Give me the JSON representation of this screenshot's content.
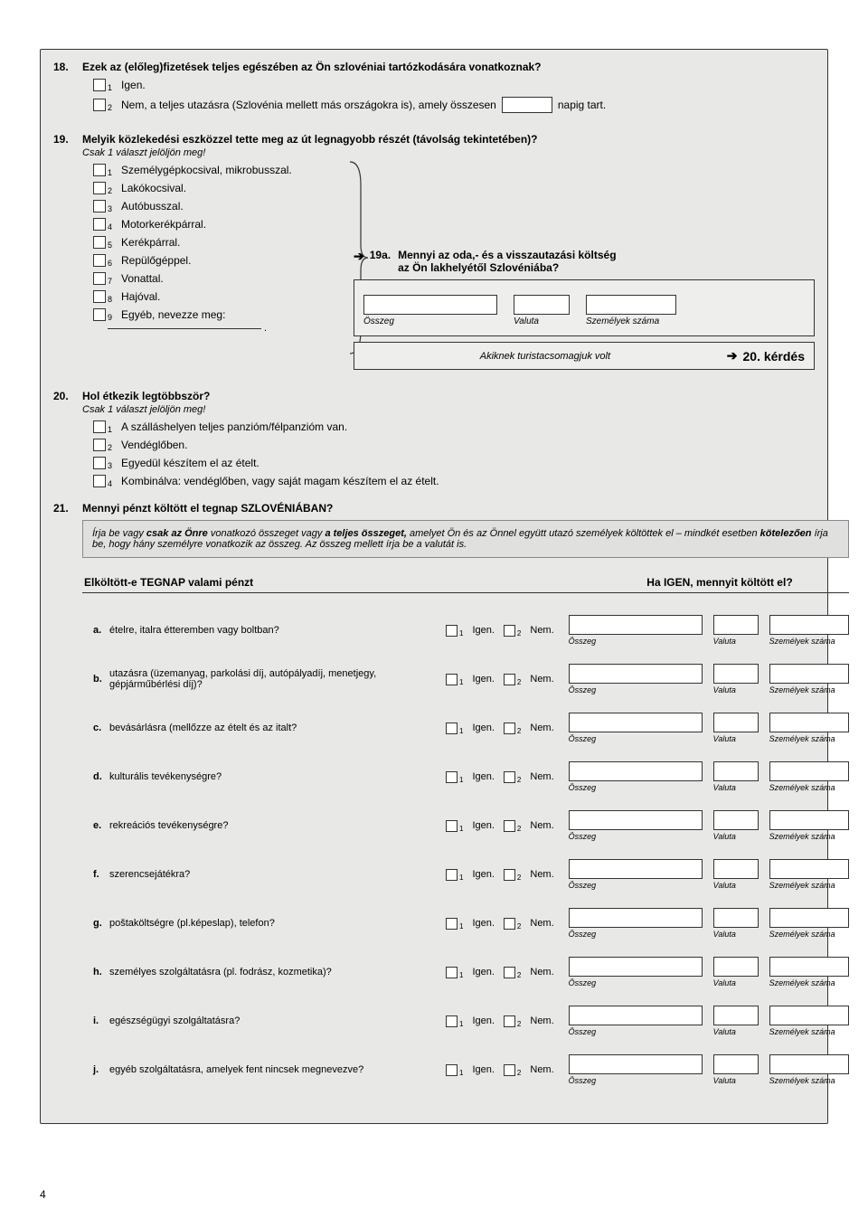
{
  "page_number": "4",
  "q18": {
    "num": "18.",
    "title": "Ezek az (előleg)fizetések teljes egészében az Ön szlovéniai tartózkodására vonatkoznak?",
    "opt1_num": "1",
    "opt1": "Igen.",
    "opt2_num": "2",
    "opt2_pre": "Nem, a teljes utazásra (Szlovénia mellett más országokra is), amely összesen",
    "opt2_post": "napig tart."
  },
  "q19": {
    "num": "19.",
    "title": "Melyik közlekedési eszközzel tette meg az út legnagyobb részét (távolság tekintetében)?",
    "note": "Csak 1 választ jelöljön meg!",
    "opts": [
      {
        "n": "1",
        "t": "Személygépkocsival, mikrobusszal."
      },
      {
        "n": "2",
        "t": "Lakókocsival."
      },
      {
        "n": "3",
        "t": "Autóbusszal."
      },
      {
        "n": "4",
        "t": "Motorkerékpárral."
      },
      {
        "n": "5",
        "t": "Kerékpárral."
      },
      {
        "n": "6",
        "t": "Repülőgéppel."
      },
      {
        "n": "7",
        "t": "Vonattal."
      },
      {
        "n": "8",
        "t": "Hajóval."
      },
      {
        "n": "9",
        "t": "Egyéb, nevezze meg:"
      }
    ],
    "sub_num": "19a.",
    "sub_title1": "Mennyi az oda,- és a visszautazási költség",
    "sub_title2": "az Ön lakhelyétől Szlovéniába?",
    "fld_osszeg": "Összeg",
    "fld_valuta": "Valuta",
    "fld_szem": "Személyek száma",
    "pkg_text": "Akiknek turistacsomagjuk volt",
    "pkg_arrow": "➔",
    "pkg_target": "20. kérdés"
  },
  "q20": {
    "num": "20.",
    "title": "Hol étkezik legtöbbször?",
    "note": "Csak 1 választ jelöljön meg!",
    "opts": [
      {
        "n": "1",
        "t": "A szálláshelyen teljes panzióm/félpanzióm van."
      },
      {
        "n": "2",
        "t": "Vendéglőben."
      },
      {
        "n": "3",
        "t": "Egyedül készítem el az ételt."
      },
      {
        "n": "4",
        "t": "Kombinálva: vendéglőben, vagy saját magam készítem el az ételt."
      }
    ]
  },
  "q21": {
    "num": "21.",
    "title": "Mennyi pénzt költött el tegnap SZLOVÉNIÁBAN?",
    "box": "Írja be vagy csak az Önre vonatkozó összeget vagy a teljes összeget, amelyet Ön és az Önnel együtt utazó személyek költöttek el – mindkét esetben kötelezően írja be, hogy hány személyre vonatkozik az összeg.  Az összeg mellett írja be a valutát is.",
    "box_bold1": "csak az Önre",
    "box_bold2": "a teljes összeget,",
    "box_bold3": "kötelezően",
    "hdr_left": "Elköltött-e TEGNAP valami pénzt",
    "hdr_right": "Ha IGEN, mennyit költött el?",
    "igen": "Igen.",
    "nem": "Nem.",
    "fld_osszeg": "Összeg",
    "fld_valuta": "Valuta",
    "fld_szem": "Személyek száma",
    "rows": [
      {
        "a": "a.",
        "t": "ételre, italra étteremben vagy boltban?"
      },
      {
        "a": "b.",
        "t": "utazásra (üzemanyag, parkolási díj, autópályadíj, menetjegy, gépjárműbérlési díj)?"
      },
      {
        "a": "c.",
        "t": "bevásárlásra (mellőzze az ételt és az italt?"
      },
      {
        "a": "d.",
        "t": "kulturális tevékenységre?"
      },
      {
        "a": "e.",
        "t": "rekreációs tevékenységre?"
      },
      {
        "a": "f.",
        "t": "szerencsejátékra?"
      },
      {
        "a": "g.",
        "t": "poštaköltségre (pl.képeslap), telefon?"
      },
      {
        "a": "h.",
        "t": "személyes szolgáltatásra (pl. fodrász, kozmetika)?"
      },
      {
        "a": "i.",
        "t": "egészségügyi szolgáltatásra?"
      },
      {
        "a": "j.",
        "t": "egyéb szolgáltatásra, amelyek  fent nincsek megnevezve?"
      }
    ]
  }
}
